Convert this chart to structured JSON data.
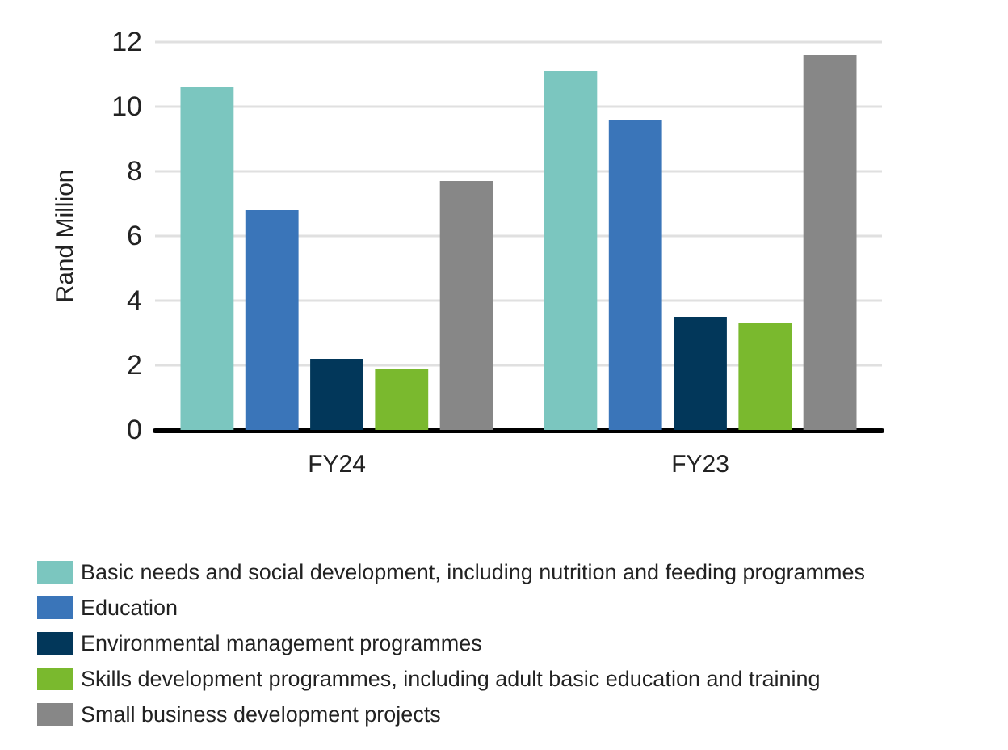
{
  "chart_data": {
    "type": "bar",
    "ylabel": "Rand Million",
    "categories": [
      "FY24",
      "FY23"
    ],
    "series": [
      {
        "name": "Basic needs and social development, including nutrition and feeding programmes",
        "color": "#7bc6bf",
        "values": [
          10.6,
          11.1
        ]
      },
      {
        "name": "Education",
        "color": "#3a75b9",
        "values": [
          6.8,
          9.6
        ]
      },
      {
        "name": "Environmental management programmes",
        "color": "#02375a",
        "values": [
          2.2,
          3.5
        ]
      },
      {
        "name": "Skills development programmes, including adult basic education and training",
        "color": "#7ab92e",
        "values": [
          1.9,
          3.3
        ]
      },
      {
        "name": "Small business development projects",
        "color": "#878787",
        "values": [
          7.7,
          11.6
        ]
      }
    ],
    "ylim": [
      0,
      12
    ],
    "yticks": [
      0,
      2,
      4,
      6,
      8,
      10,
      12
    ],
    "grid": "y",
    "legend": "bottom"
  }
}
